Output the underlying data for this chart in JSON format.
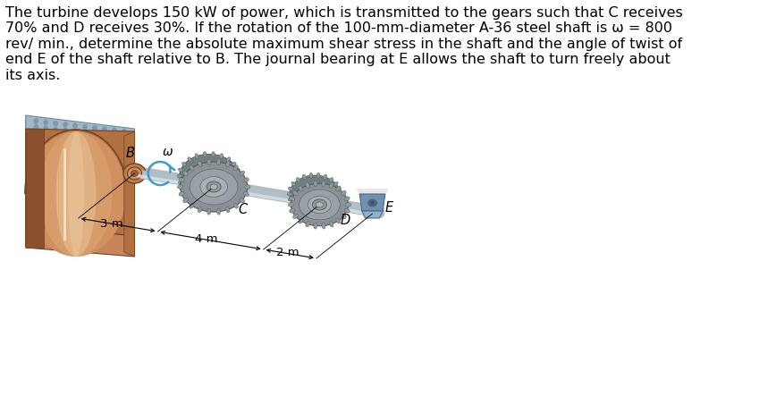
{
  "text_line1": "The turbine develops 150 kW of power, which is transmitted to the gears such that C receives",
  "text_line2": "70% and D receives 30%. If the rotation of the 100-mm-diameter A-36 steel shaft is ω = 800",
  "text_line3": "rev/ min., determine the absolute maximum shear stress in the shaft and the angle of twist of",
  "text_line4": "end E of the shaft relative to B. The journal bearing at E allows the shaft to turn freely about",
  "text_line5": "its axis.",
  "label_B": "B",
  "label_C": "C",
  "label_D": "D",
  "label_E": "E",
  "label_omega": "ω",
  "label_3m": "3 m",
  "label_4m": "4 m",
  "label_2m": "2 m",
  "bg_color": "#ffffff",
  "turbine_top_color": "#c8845a",
  "turbine_front_color": "#b07040",
  "turbine_side_color": "#8a5030",
  "turbine_highlight": "#e8b080",
  "turbine_dark": "#704020",
  "base_top_color": "#c8dce8",
  "base_side_color": "#a0b8c8",
  "base_front_color": "#90a8b8",
  "rivet_color": "#8098a8",
  "shaft_color": "#b0bec8",
  "shaft_shadow": "#8090a0",
  "gear_face_color": "#909aa0",
  "gear_side_color": "#708080",
  "gear_hub_color": "#a0aaaa",
  "gear_dark_color": "#606a6a",
  "bearing_color": "#7090b0",
  "bearing_dark": "#4a6a88",
  "bearing_shadow": "#c0c8d0",
  "omega_color": "#4499cc",
  "dim_color": "#000000",
  "text_color": "#000000",
  "label_font_size": 10.5,
  "text_font_size": 11.5
}
